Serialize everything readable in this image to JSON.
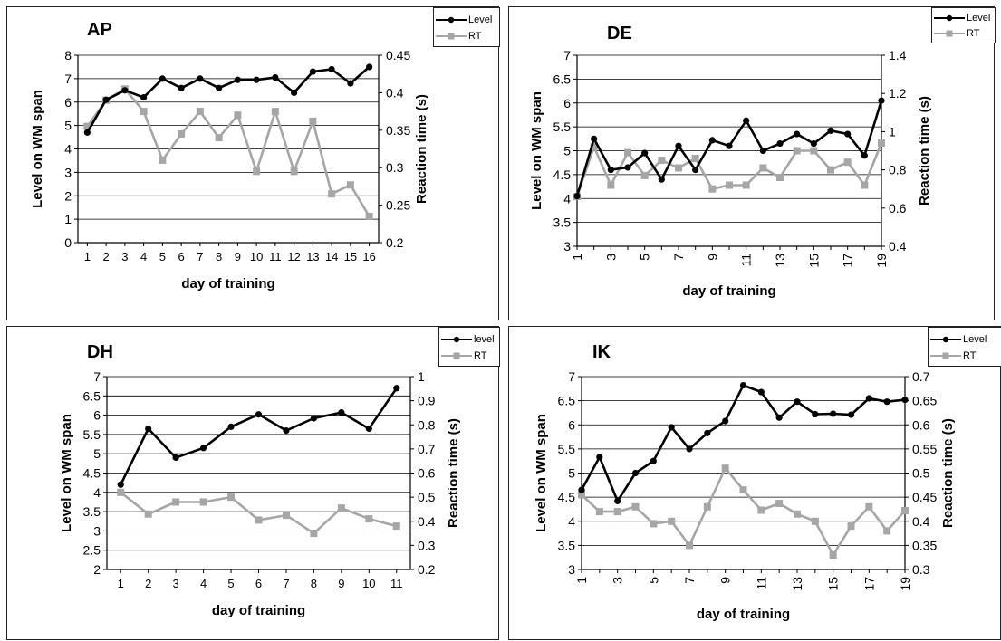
{
  "chart_data": [
    {
      "type": "line",
      "title": "AP",
      "xlabel": "day of training",
      "ylabel_left": "Level on WM span",
      "ylabel_right": "Reaction time (s)",
      "categories": [
        "1",
        "2",
        "3",
        "4",
        "5",
        "6",
        "7",
        "8",
        "9",
        "10",
        "11",
        "12",
        "13",
        "14",
        "15",
        "16"
      ],
      "left_axis": {
        "min": 0,
        "max": 8,
        "ticks": [
          "0",
          "1",
          "2",
          "3",
          "4",
          "5",
          "6",
          "7",
          "8"
        ]
      },
      "right_axis": {
        "min": 0.2,
        "max": 0.45,
        "ticks": [
          "0.2",
          "0.25",
          "0.3",
          "0.35",
          "0.4",
          "0.45"
        ]
      },
      "grid": true,
      "legend_position": "top-right",
      "series": [
        {
          "name": "Level",
          "axis": "left",
          "color": "#000000",
          "marker": "circle",
          "values": [
            4.7,
            6.1,
            6.5,
            6.2,
            7.0,
            6.6,
            7.0,
            6.6,
            6.95,
            6.95,
            7.05,
            6.4,
            7.3,
            7.4,
            6.8,
            7.5
          ]
        },
        {
          "name": "RT",
          "axis": "right",
          "color": "#a6a6a6",
          "marker": "square",
          "values": [
            0.355,
            0.39,
            0.405,
            0.375,
            0.31,
            0.345,
            0.375,
            0.34,
            0.37,
            0.295,
            0.375,
            0.295,
            0.362,
            0.265,
            0.277,
            0.235
          ]
        }
      ]
    },
    {
      "type": "line",
      "title": "DE",
      "xlabel": "day of training",
      "ylabel_left": "Level on WM span",
      "ylabel_right": "Reaction time (s)",
      "categories": [
        "1",
        "2",
        "3",
        "4",
        "5",
        "6",
        "7",
        "8",
        "9",
        "10",
        "11",
        "12",
        "13",
        "14",
        "15",
        "16",
        "17",
        "18",
        "19"
      ],
      "tick_labels_shown": [
        "1",
        "",
        "3",
        "",
        "5",
        "",
        "7",
        "",
        "9",
        "",
        "11",
        "",
        "13",
        "",
        "15",
        "",
        "17",
        "",
        "19"
      ],
      "x_labels_rotated": true,
      "left_axis": {
        "min": 3,
        "max": 7,
        "ticks": [
          "3",
          "3.5",
          "4",
          "4.5",
          "5",
          "5.5",
          "6",
          "6.5",
          "7"
        ]
      },
      "right_axis": {
        "min": 0.4,
        "max": 1.4,
        "ticks": [
          "0.4",
          "0.6",
          "0.8",
          "1",
          "1.2",
          "1.4"
        ]
      },
      "grid": true,
      "legend_position": "top-right",
      "series": [
        {
          "name": "Level",
          "axis": "left",
          "color": "#000000",
          "marker": "circle",
          "values": [
            4.05,
            5.25,
            4.6,
            4.65,
            4.95,
            4.4,
            5.1,
            4.6,
            5.22,
            5.1,
            5.63,
            5.0,
            5.15,
            5.35,
            5.15,
            5.42,
            5.35,
            4.9,
            6.05
          ]
        },
        {
          "name": "RT",
          "axis": "right",
          "color": "#a6a6a6",
          "marker": "square",
          "values": [
            0.66,
            0.92,
            0.72,
            0.89,
            0.77,
            0.85,
            0.81,
            0.86,
            0.7,
            0.72,
            0.72,
            0.81,
            0.76,
            0.9,
            0.9,
            0.8,
            0.84,
            0.72,
            0.94
          ]
        }
      ]
    },
    {
      "type": "line",
      "title": "DH",
      "xlabel": "day of training",
      "ylabel_left": "Level on WM span",
      "ylabel_right": "Reaction time (s)",
      "categories": [
        "1",
        "2",
        "3",
        "4",
        "5",
        "6",
        "7",
        "8",
        "9",
        "10",
        "11"
      ],
      "left_axis": {
        "min": 2,
        "max": 7,
        "ticks": [
          "2",
          "2.5",
          "3",
          "3.5",
          "4",
          "4.5",
          "5",
          "5.5",
          "6",
          "6.5",
          "7"
        ]
      },
      "right_axis": {
        "min": 0.2,
        "max": 1,
        "ticks": [
          "0.2",
          "0.3",
          "0.4",
          "0.5",
          "0.6",
          "0.7",
          "0.8",
          "0.9",
          "1"
        ]
      },
      "grid": true,
      "legend_position": "top-right",
      "series": [
        {
          "name": "level",
          "axis": "left",
          "color": "#000000",
          "marker": "circle",
          "values": [
            4.2,
            5.65,
            4.9,
            5.15,
            5.7,
            6.02,
            5.6,
            5.92,
            6.07,
            5.65,
            6.7
          ]
        },
        {
          "name": "RT",
          "axis": "right",
          "color": "#a6a6a6",
          "marker": "square",
          "values": [
            0.52,
            0.43,
            0.48,
            0.48,
            0.5,
            0.405,
            0.425,
            0.35,
            0.455,
            0.41,
            0.38
          ]
        }
      ]
    },
    {
      "type": "line",
      "title": "IK",
      "xlabel": "day of training",
      "ylabel_left": "Level on WM span",
      "ylabel_right": "Reaction time (s)",
      "categories": [
        "1",
        "2",
        "3",
        "4",
        "5",
        "6",
        "7",
        "8",
        "9",
        "10",
        "11",
        "12",
        "13",
        "14",
        "15",
        "16",
        "17",
        "18",
        "19"
      ],
      "tick_labels_shown": [
        "1",
        "",
        "3",
        "",
        "5",
        "",
        "7",
        "",
        "9",
        "",
        "11",
        "",
        "13",
        "",
        "15",
        "",
        "17",
        "",
        "19"
      ],
      "x_labels_rotated": true,
      "left_axis": {
        "min": 3,
        "max": 7,
        "ticks": [
          "3",
          "3.5",
          "4",
          "4.5",
          "5",
          "5.5",
          "6",
          "6.5",
          "7"
        ]
      },
      "right_axis": {
        "min": 0.3,
        "max": 0.7,
        "ticks": [
          "0.3",
          "0.35",
          "0.4",
          "0.45",
          "0.5",
          "0.55",
          "0.6",
          "0.65",
          "0.7"
        ]
      },
      "grid": true,
      "legend_position": "top-right",
      "series": [
        {
          "name": "Level",
          "axis": "left",
          "color": "#000000",
          "marker": "circle",
          "values": [
            4.65,
            5.33,
            4.42,
            5.0,
            5.25,
            5.95,
            5.5,
            5.83,
            6.08,
            6.82,
            6.68,
            6.15,
            6.48,
            6.22,
            6.23,
            6.21,
            6.55,
            6.48,
            6.52
          ]
        },
        {
          "name": "RT",
          "axis": "right",
          "color": "#a6a6a6",
          "marker": "square",
          "values": [
            0.455,
            0.42,
            0.42,
            0.43,
            0.395,
            0.4,
            0.35,
            0.43,
            0.51,
            0.465,
            0.423,
            0.437,
            0.415,
            0.4,
            0.33,
            0.39,
            0.43,
            0.38,
            0.422
          ]
        }
      ]
    }
  ]
}
